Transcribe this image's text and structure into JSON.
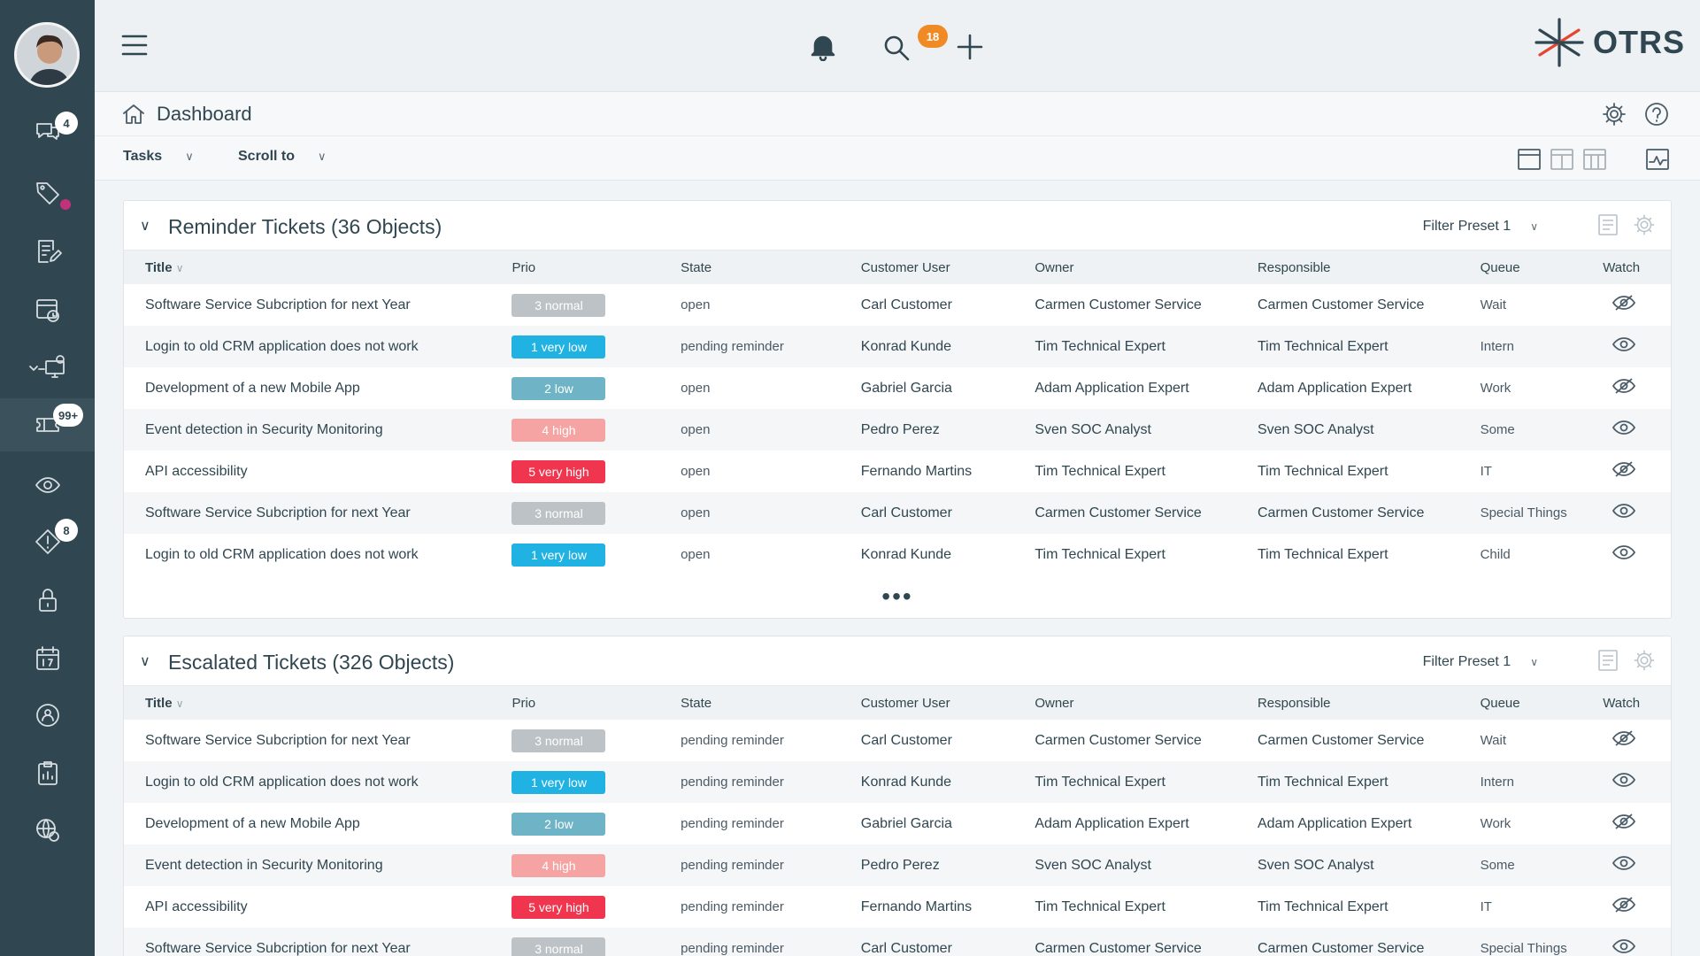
{
  "colors": {
    "sidebar_bg": "#304650",
    "accent_orange": "#f08a24",
    "prio_normal": "#bcc2c6",
    "prio_very_low": "#1fb2e3",
    "prio_low": "#6fb4c6",
    "prio_high": "#f6a3a3",
    "prio_very_high": "#f0364f"
  },
  "sidebar": {
    "chat_badge": "4",
    "tickets_badge": "99+",
    "alerts_badge": "8"
  },
  "topbar": {
    "notifications_badge": "18",
    "logo_text": "OTRS"
  },
  "page": {
    "title": "Dashboard"
  },
  "toolbar": {
    "tasks_label": "Tasks",
    "scroll_label": "Scroll to"
  },
  "widgets": [
    {
      "title": "Reminder Tickets (36 Objects)",
      "filter": "Filter Preset 1",
      "columns": [
        "Title",
        "Prio",
        "State",
        "Customer User",
        "Owner",
        "Responsible",
        "Queue",
        "Watch"
      ],
      "rows": [
        {
          "title": "Software Service Subcription for next Year",
          "prio": "3 normal",
          "prio_level": "normal",
          "state": "open",
          "customer": "Carl Customer",
          "owner": "Carmen Customer Service",
          "responsible": "Carmen Customer Service",
          "queue": "Wait",
          "watched": false
        },
        {
          "title": "Login to old CRM application does not work",
          "prio": "1 very low",
          "prio_level": "very_low",
          "state": "pending reminder",
          "customer": "Konrad Kunde",
          "owner": "Tim Technical Expert",
          "responsible": "Tim Technical Expert",
          "queue": "Intern",
          "watched": true
        },
        {
          "title": "Development of a new Mobile App",
          "prio": "2 low",
          "prio_level": "low",
          "state": "open",
          "customer": "Gabriel Garcia",
          "owner": "Adam Application Expert",
          "responsible": "Adam Application Expert",
          "queue": "Work",
          "watched": false
        },
        {
          "title": "Event detection in Security Monitoring",
          "prio": "4 high",
          "prio_level": "high",
          "state": "open",
          "customer": "Pedro Perez",
          "owner": "Sven SOC Analyst",
          "responsible": "Sven SOC Analyst",
          "queue": "Some",
          "watched": true
        },
        {
          "title": "API accessibility",
          "prio": "5 very high",
          "prio_level": "very_high",
          "state": "open",
          "customer": "Fernando Martins",
          "owner": "Tim Technical Expert",
          "responsible": "Tim Technical Expert",
          "queue": "IT",
          "watched": false
        },
        {
          "title": "Software Service Subcription for next Year",
          "prio": "3 normal",
          "prio_level": "normal",
          "state": "open",
          "customer": "Carl Customer",
          "owner": "Carmen Customer Service",
          "responsible": "Carmen Customer Service",
          "queue": "Special Things",
          "watched": true
        },
        {
          "title": "Login to old CRM application does not work",
          "prio": "1 very low",
          "prio_level": "very_low",
          "state": "open",
          "customer": "Konrad Kunde",
          "owner": "Tim Technical Expert",
          "responsible": "Tim Technical Expert",
          "queue": "Child",
          "watched": true
        }
      ],
      "more": "•••"
    },
    {
      "title": "Escalated Tickets (326 Objects)",
      "filter": "Filter Preset 1",
      "columns": [
        "Title",
        "Prio",
        "State",
        "Customer User",
        "Owner",
        "Responsible",
        "Queue",
        "Watch"
      ],
      "rows": [
        {
          "title": "Software Service Subcription for next Year",
          "prio": "3 normal",
          "prio_level": "normal",
          "state": "pending reminder",
          "customer": "Carl Customer",
          "owner": "Carmen Customer Service",
          "responsible": "Carmen Customer Service",
          "queue": "Wait",
          "watched": false
        },
        {
          "title": "Login to old CRM application does not work",
          "prio": "1 very low",
          "prio_level": "very_low",
          "state": "pending reminder",
          "customer": "Konrad Kunde",
          "owner": "Tim Technical Expert",
          "responsible": "Tim Technical Expert",
          "queue": "Intern",
          "watched": true
        },
        {
          "title": "Development of a new Mobile App",
          "prio": "2 low",
          "prio_level": "low",
          "state": "pending reminder",
          "customer": "Gabriel Garcia",
          "owner": "Adam Application Expert",
          "responsible": "Adam Application Expert",
          "queue": "Work",
          "watched": false
        },
        {
          "title": "Event detection in Security Monitoring",
          "prio": "4 high",
          "prio_level": "high",
          "state": "pending reminder",
          "customer": "Pedro Perez",
          "owner": "Sven SOC Analyst",
          "responsible": "Sven SOC Analyst",
          "queue": "Some",
          "watched": true
        },
        {
          "title": "API accessibility",
          "prio": "5 very high",
          "prio_level": "very_high",
          "state": "pending reminder",
          "customer": "Fernando Martins",
          "owner": "Tim Technical Expert",
          "responsible": "Tim Technical Expert",
          "queue": "IT",
          "watched": false
        },
        {
          "title": "Software Service Subcription for next Year",
          "prio": "3 normal",
          "prio_level": "normal",
          "state": "pending reminder",
          "customer": "Carl Customer",
          "owner": "Carmen Customer Service",
          "responsible": "Carmen Customer Service",
          "queue": "Special Things",
          "watched": true
        }
      ]
    }
  ]
}
